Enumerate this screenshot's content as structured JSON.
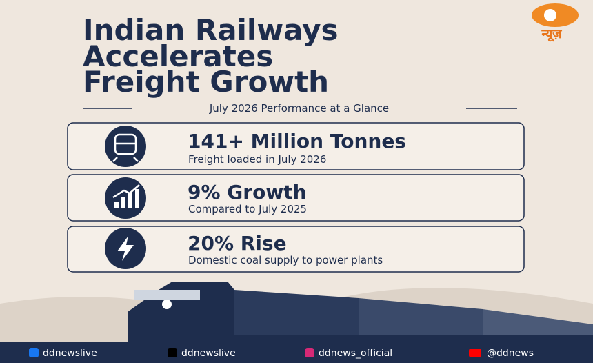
{
  "logo": {
    "text": "न्यूज़"
  },
  "title_lines": [
    "Indian Railways",
    "Accelerates",
    "Freight Growth"
  ],
  "subtitle": "July 2026 Performance at a Glance",
  "cards": [
    {
      "headline": "141+ Million Tonnes",
      "description": "Freight loaded in July 2026"
    },
    {
      "headline": "9% Growth",
      "description": "Compared to July 2025"
    },
    {
      "headline": "20% Rise",
      "description": "Domestic coal supply to power plants"
    }
  ],
  "footer": [
    "ddnewslive",
    "ddnewslive",
    "ddnews_official",
    "@ddnews"
  ]
}
